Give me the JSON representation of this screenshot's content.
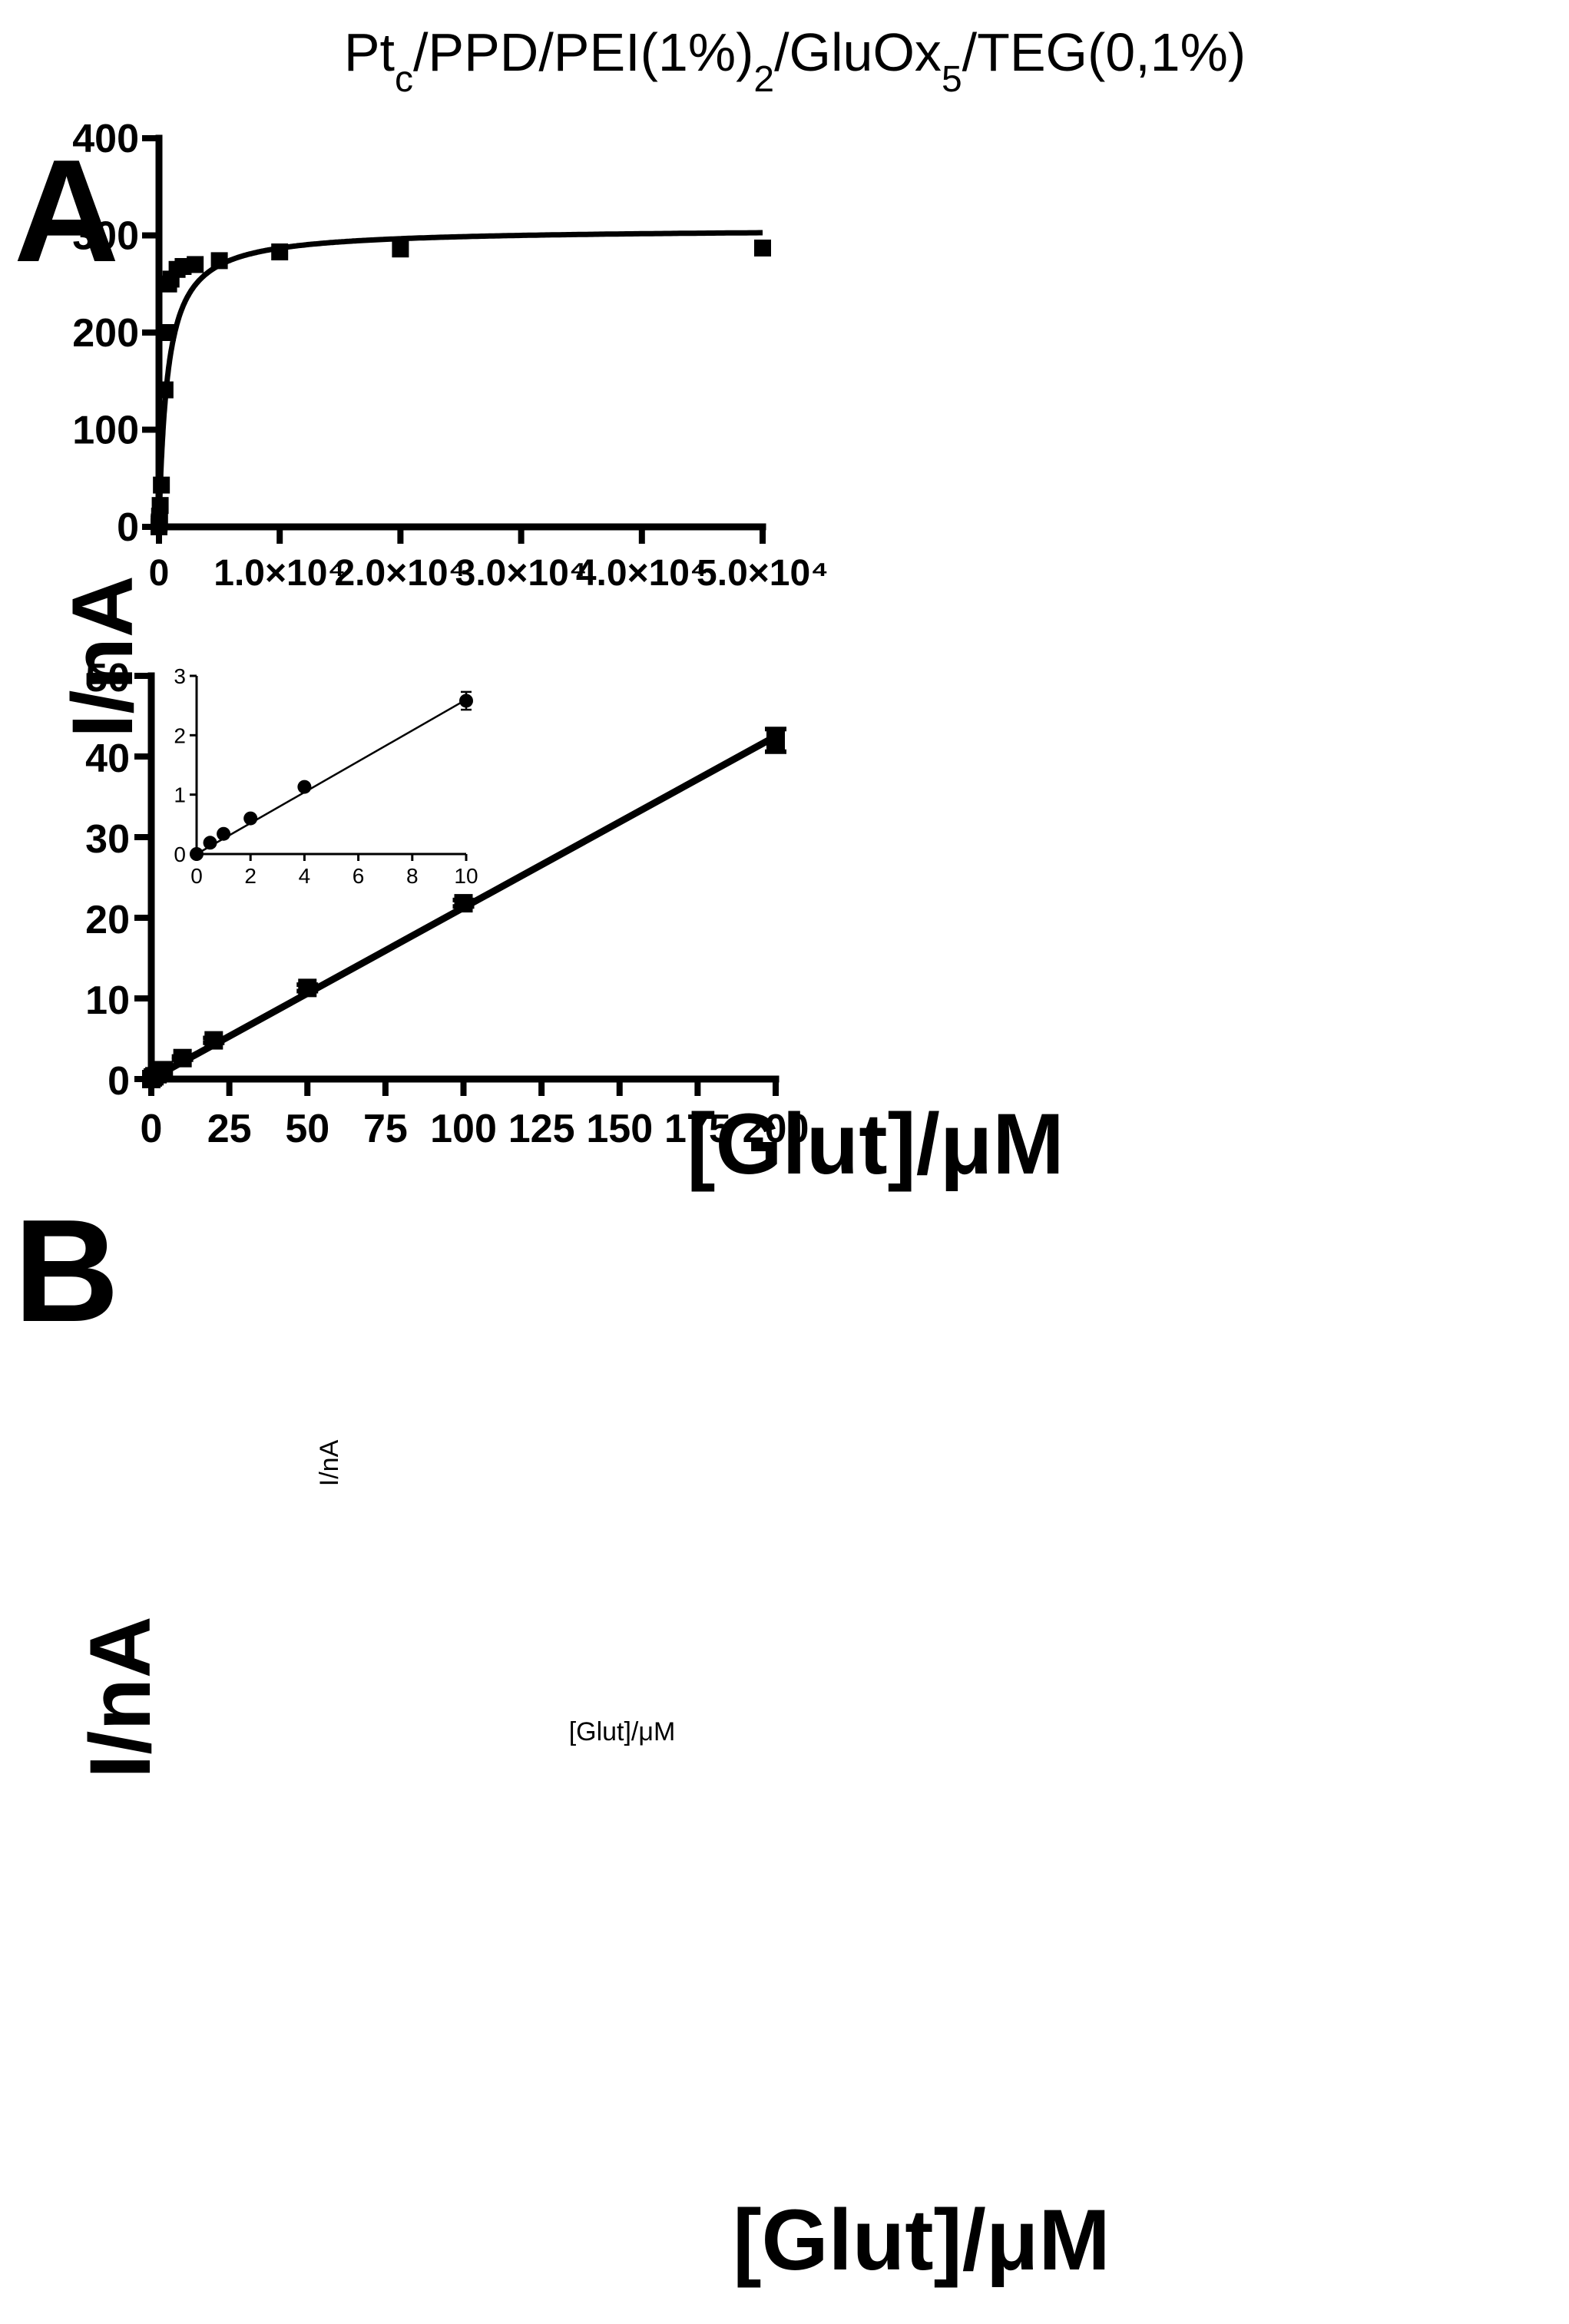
{
  "figure": {
    "title": {
      "parts": [
        {
          "text": "Pt",
          "style": "normal"
        },
        {
          "text": "c",
          "style": "sub"
        },
        {
          "text": "/PPD/PEI(1%)",
          "style": "normal"
        },
        {
          "text": "2",
          "style": "sub"
        },
        {
          "text": "/GluOx",
          "style": "normal"
        },
        {
          "text": "5",
          "style": "sub"
        },
        {
          "text": "/TEG(0,1%)",
          "style": "normal"
        }
      ]
    },
    "panelA_label": "A",
    "panelB_label": "B"
  },
  "chart_data": [
    {
      "id": "A",
      "type": "scatter",
      "fit": "michaelis-menten",
      "xlabel": "[Glut]/μM",
      "ylabel": "I/nA",
      "xlim": [
        0,
        50000
      ],
      "ylim": [
        0,
        400
      ],
      "x_ticks": [
        {
          "value": 0,
          "label": "0"
        },
        {
          "value": 10000,
          "label": "1.0×10⁴"
        },
        {
          "value": 20000,
          "label": "2.0×10⁴"
        },
        {
          "value": 30000,
          "label": "3.0×10⁴"
        },
        {
          "value": 40000,
          "label": "4.0×10⁴"
        },
        {
          "value": 50000,
          "label": "5.0×10⁴"
        }
      ],
      "y_ticks": [
        {
          "value": 0,
          "label": "0"
        },
        {
          "value": 100,
          "label": "100"
        },
        {
          "value": 200,
          "label": "200"
        },
        {
          "value": 300,
          "label": "300"
        },
        {
          "value": 400,
          "label": "400"
        }
      ],
      "marker": "square",
      "points": [
        {
          "x": 0,
          "y": 0
        },
        {
          "x": 10,
          "y": 3
        },
        {
          "x": 20,
          "y": 5
        },
        {
          "x": 50,
          "y": 11
        },
        {
          "x": 100,
          "y": 22
        },
        {
          "x": 200,
          "y": 43
        },
        {
          "x": 500,
          "y": 141
        },
        {
          "x": 700,
          "y": 200
        },
        {
          "x": 800,
          "y": 250
        },
        {
          "x": 1000,
          "y": 255
        },
        {
          "x": 1500,
          "y": 265
        },
        {
          "x": 2000,
          "y": 268
        },
        {
          "x": 3000,
          "y": 270
        },
        {
          "x": 5000,
          "y": 274
        },
        {
          "x": 10000,
          "y": 283
        },
        {
          "x": 20000,
          "y": 286
        },
        {
          "x": 50000,
          "y": 287
        }
      ],
      "fit_params": {
        "Vmax": 307,
        "Km": 700
      },
      "grid": false,
      "legend": "none"
    },
    {
      "id": "B",
      "type": "scatter",
      "fit": "linear",
      "xlabel": "[Glut]/μM",
      "ylabel": "I/nA",
      "xlim": [
        0,
        200
      ],
      "ylim": [
        0,
        50
      ],
      "x_ticks": [
        0,
        25,
        50,
        75,
        100,
        125,
        150,
        175,
        200
      ],
      "y_ticks": [
        0,
        10,
        20,
        30,
        40,
        50
      ],
      "marker": "square",
      "points": [
        {
          "x": 0,
          "y": 0,
          "err": 0
        },
        {
          "x": 0.5,
          "y": 0.2,
          "err": 0
        },
        {
          "x": 1,
          "y": 0.35,
          "err": 0
        },
        {
          "x": 2,
          "y": 0.6,
          "err": 0
        },
        {
          "x": 4,
          "y": 1.1,
          "err": 0
        },
        {
          "x": 10,
          "y": 2.6,
          "err": 0.2
        },
        {
          "x": 20,
          "y": 4.8,
          "err": 0.3
        },
        {
          "x": 50,
          "y": 11.3,
          "err": 0.4
        },
        {
          "x": 100,
          "y": 21.8,
          "err": 0.4
        },
        {
          "x": 200,
          "y": 42.0,
          "err": 1.4
        }
      ],
      "fit_line": {
        "x": [
          0,
          200
        ],
        "y": [
          0,
          42.5
        ]
      },
      "grid": false,
      "legend": "none",
      "inset": {
        "type": "scatter",
        "fit": "linear",
        "xlabel": "[Glut]/μM",
        "ylabel": "I/nA",
        "xlim": [
          0,
          10
        ],
        "ylim": [
          0,
          3
        ],
        "x_ticks": [
          0,
          2,
          4,
          6,
          8,
          10
        ],
        "y_ticks": [
          0,
          1,
          2,
          3
        ],
        "marker": "circle",
        "points": [
          {
            "x": 0,
            "y": 0,
            "err": 0
          },
          {
            "x": 0.5,
            "y": 0.19,
            "err": 0.02
          },
          {
            "x": 1,
            "y": 0.34,
            "err": 0.03
          },
          {
            "x": 2,
            "y": 0.6,
            "err": 0.04
          },
          {
            "x": 4,
            "y": 1.13,
            "err": 0.06
          },
          {
            "x": 10,
            "y": 2.58,
            "err": 0.15
          }
        ],
        "fit_line": {
          "x": [
            0,
            10
          ],
          "y": [
            0,
            2.6
          ]
        }
      }
    }
  ]
}
